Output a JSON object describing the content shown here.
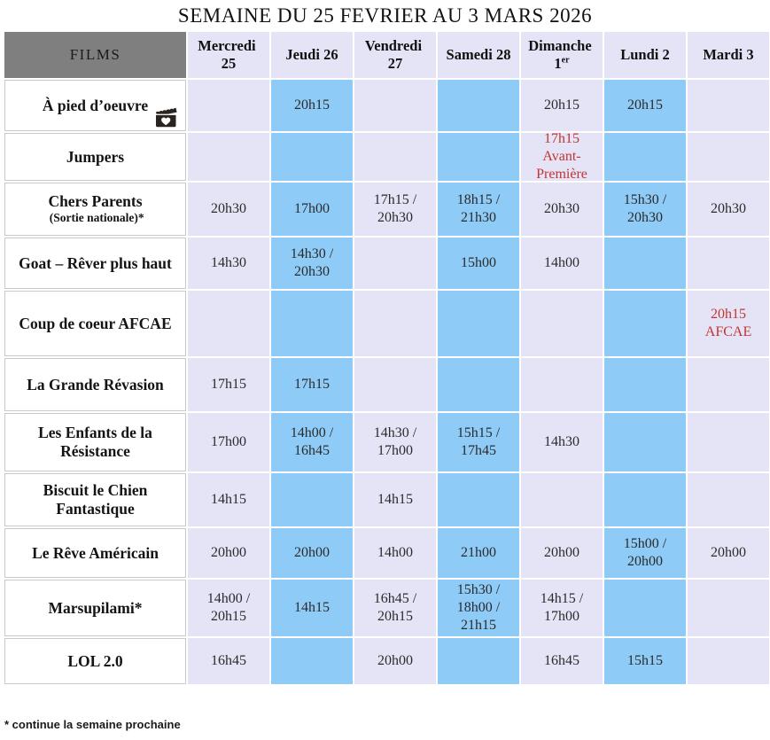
{
  "title": "SEMAINE DU 25 FEVRIER AU 3 MARS 2026",
  "footnote": "* continue la semaine prochaine",
  "colors": {
    "lavender": "#e5e3f6",
    "blue": "#8fcbf7",
    "header_gray": "#7f7f7f",
    "special_red": "#c23430"
  },
  "table": {
    "films_header": "FILMS",
    "days": [
      {
        "name": "Mercredi",
        "num": "25"
      },
      {
        "name": "Jeudi",
        "num": "26"
      },
      {
        "name": "Vendredi",
        "num": "27"
      },
      {
        "name": "Samedi",
        "num": "28"
      },
      {
        "name": "Dimanche",
        "num": "1",
        "sup": "er"
      },
      {
        "name": "Lundi",
        "num": "2"
      },
      {
        "name": "Mardi",
        "num": "3"
      }
    ],
    "films": [
      {
        "name": "À pied d’oeuvre",
        "icon": "clapperboard-heart-icon",
        "times": [
          "",
          "20h15",
          "",
          "",
          "20h15",
          "20h15",
          ""
        ]
      },
      {
        "name": "Jumpers",
        "times": [
          "",
          "",
          "",
          "",
          {
            "text": "17h15\nAvant-Première",
            "red": true
          },
          "",
          ""
        ]
      },
      {
        "name": "Chers Parents",
        "note": "(Sortie nationale)*",
        "times": [
          "20h30",
          "17h00",
          "17h15 / 20h30",
          "18h15 / 21h30",
          "20h30",
          "15h30 / 20h30",
          "20h30"
        ]
      },
      {
        "name": "Goat – Rêver plus haut",
        "times": [
          "14h30",
          "14h30 / 20h30",
          "",
          "15h00",
          "14h00",
          "",
          ""
        ]
      },
      {
        "name": "Coup de coeur AFCAE",
        "times": [
          "",
          "",
          "",
          "",
          "",
          "",
          {
            "text": "20h15\nAFCAE",
            "red": true
          }
        ]
      },
      {
        "name": "La Grande Révasion",
        "times": [
          "17h15",
          "17h15",
          "",
          "",
          "",
          "",
          ""
        ]
      },
      {
        "name": "Les Enfants de la Résistance",
        "times": [
          "17h00",
          "14h00 / 16h45",
          "14h30 / 17h00",
          "15h15 / 17h45",
          "14h30",
          "",
          ""
        ]
      },
      {
        "name": "Biscuit le Chien Fantastique",
        "times": [
          "14h15",
          "",
          "14h15",
          "",
          "",
          "",
          ""
        ]
      },
      {
        "name": "Le Rêve Américain",
        "times": [
          "20h00",
          "20h00",
          "14h00",
          "21h00",
          "20h00",
          "15h00 / 20h00",
          "20h00"
        ]
      },
      {
        "name": "Marsupilami*",
        "times": [
          "14h00 / 20h15",
          "14h15",
          "16h45 / 20h15",
          "15h30 / 18h00 / 21h15",
          "14h15 / 17h00",
          "",
          ""
        ]
      },
      {
        "name": "LOL 2.0",
        "times": [
          "16h45",
          "",
          "20h00",
          "",
          "16h45",
          "15h15",
          ""
        ]
      }
    ]
  }
}
